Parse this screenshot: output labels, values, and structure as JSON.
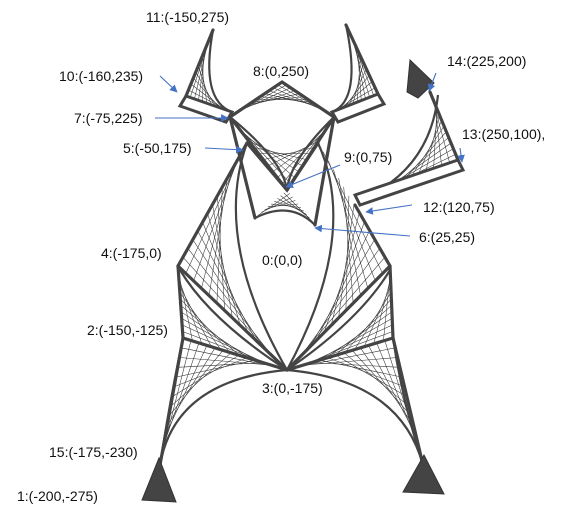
{
  "labels": {
    "p11": "11:(-150,275)",
    "p10": "10:(-160,235)",
    "p8": "8:(0,250)",
    "p14": "14:(225,200)",
    "p7": "7:(-75,225)",
    "p13": "13:(250,100),",
    "p5": "5:(-50,175)",
    "p9": "9:(0,75)",
    "p12": "12:(120,75)",
    "p6": "6:(25,25)",
    "p4": "4:(-175,0)",
    "p0": "0:(0,0)",
    "p2": "2:(-150,-125)",
    "p3": "3:(0,-175)",
    "p15": "15:(-175,-230)",
    "p1": "1:(-200,-275)"
  },
  "colors": {
    "line": "#444444",
    "arrow": "#4472c4"
  }
}
